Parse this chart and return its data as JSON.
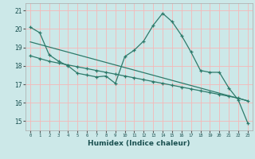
{
  "title": "",
  "xlabel": "Humidex (Indice chaleur)",
  "bg_color": "#cce8e8",
  "grid_color": "#f5b8b8",
  "line_color": "#2d7a6a",
  "xlim": [
    -0.5,
    23.5
  ],
  "ylim": [
    14.5,
    21.4
  ],
  "xticks": [
    0,
    1,
    2,
    3,
    4,
    5,
    6,
    7,
    8,
    9,
    10,
    11,
    12,
    13,
    14,
    15,
    16,
    17,
    18,
    19,
    20,
    21,
    22,
    23
  ],
  "yticks": [
    15,
    16,
    17,
    18,
    19,
    20,
    21
  ],
  "line1_x": [
    0,
    1,
    2,
    3,
    4,
    5,
    6,
    7,
    8,
    9,
    10,
    11,
    12,
    13,
    14,
    15,
    16,
    17,
    18,
    19,
    20,
    21,
    22,
    23
  ],
  "line1_y": [
    20.1,
    19.8,
    18.6,
    18.25,
    18.0,
    17.6,
    17.5,
    17.4,
    17.45,
    17.05,
    18.5,
    18.85,
    19.35,
    20.2,
    20.85,
    20.4,
    19.65,
    18.75,
    17.75,
    17.65,
    17.65,
    16.8,
    16.15,
    14.9
  ],
  "line2_x": [
    0,
    1,
    2,
    3,
    4,
    5,
    6,
    7,
    8,
    9,
    10,
    11,
    12,
    13,
    14,
    15,
    16,
    17,
    18,
    19,
    20,
    21,
    22,
    23
  ],
  "line2_y": [
    18.55,
    18.4,
    18.25,
    18.15,
    18.05,
    17.95,
    17.85,
    17.75,
    17.65,
    17.55,
    17.45,
    17.35,
    17.25,
    17.15,
    17.05,
    16.95,
    16.85,
    16.75,
    16.65,
    16.55,
    16.45,
    16.35,
    16.25,
    16.1
  ],
  "line3_x": [
    0,
    23
  ],
  "line3_y": [
    19.3,
    16.1
  ]
}
